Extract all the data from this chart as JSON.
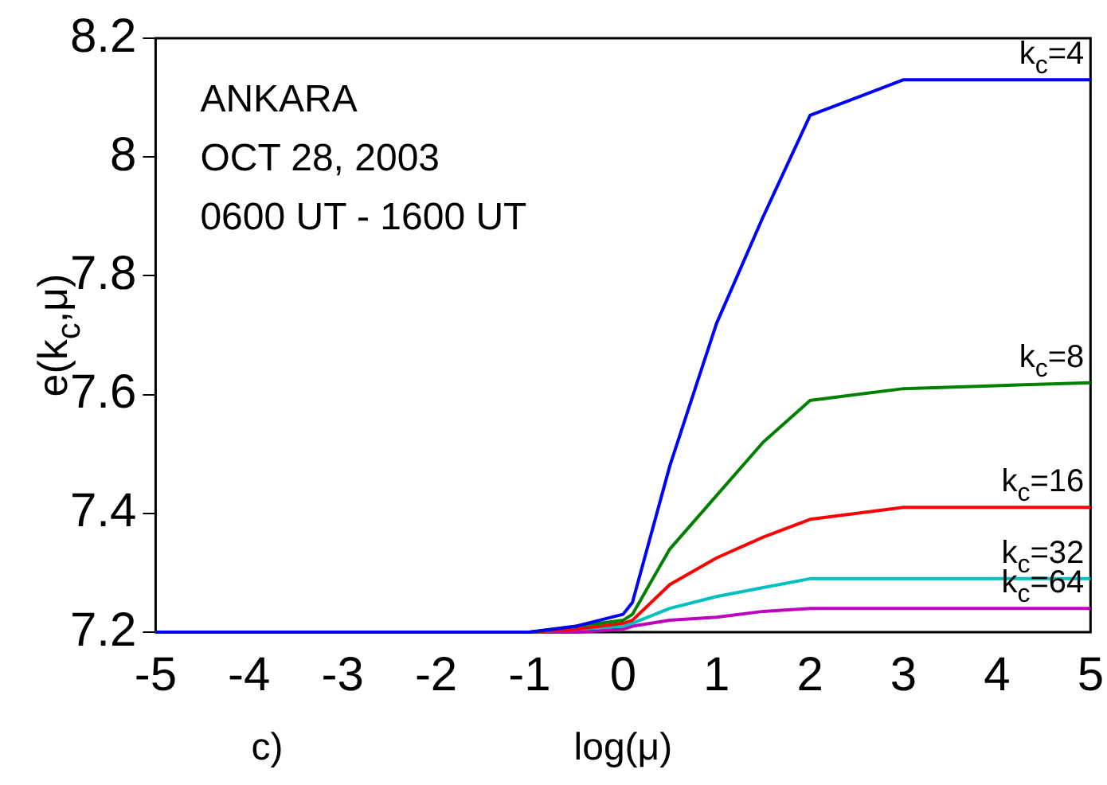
{
  "chart_data": {
    "type": "line",
    "xlabel": "log(μ)",
    "ylabel": "e(k$_{c}$,μ)",
    "annotations": [
      "ANKARA",
      "OCT 28, 2003",
      "0600 UT - 1600 UT",
      "c)"
    ],
    "x": [
      -5,
      -1,
      -0.5,
      0,
      0.1,
      0.5,
      1,
      1.5,
      2,
      2.5,
      3,
      5
    ],
    "series": [
      {
        "name": "k$_{c}$=4",
        "color": "#0000ff",
        "values": [
          7.2,
          7.2,
          7.21,
          7.23,
          7.25,
          7.48,
          7.72,
          7.9,
          8.07,
          8.1,
          8.13,
          8.13
        ]
      },
      {
        "name": "k$_{c}$=8",
        "color": "#008000",
        "values": [
          7.2,
          7.2,
          7.21,
          7.22,
          7.23,
          7.34,
          7.43,
          7.52,
          7.59,
          7.6,
          7.61,
          7.62
        ]
      },
      {
        "name": "k$_{c}$=16",
        "color": "#ff0000",
        "values": [
          7.2,
          7.2,
          7.205,
          7.215,
          7.22,
          7.28,
          7.325,
          7.36,
          7.39,
          7.4,
          7.41,
          7.41
        ]
      },
      {
        "name": "k$_{c}$=32",
        "color": "#00bfbf",
        "values": [
          7.2,
          7.2,
          7.205,
          7.21,
          7.215,
          7.24,
          7.26,
          7.275,
          7.29,
          7.29,
          7.29,
          7.29
        ]
      },
      {
        "name": "k$_{c}$=64",
        "color": "#bf00bf",
        "values": [
          7.2,
          7.2,
          7.2,
          7.205,
          7.21,
          7.22,
          7.225,
          7.235,
          7.24,
          7.24,
          7.24,
          7.24
        ]
      }
    ],
    "xlim": [
      -5,
      5
    ],
    "xticks": [
      -5,
      -4,
      -3,
      -2,
      -1,
      0,
      1,
      2,
      3,
      4,
      5
    ],
    "ylim": [
      7.2,
      8.2
    ],
    "yticks": [
      7.2,
      7.4,
      7.6,
      7.8,
      8,
      8.2
    ],
    "grid": false,
    "legend": false,
    "marker": "none",
    "line_style": "solid"
  }
}
